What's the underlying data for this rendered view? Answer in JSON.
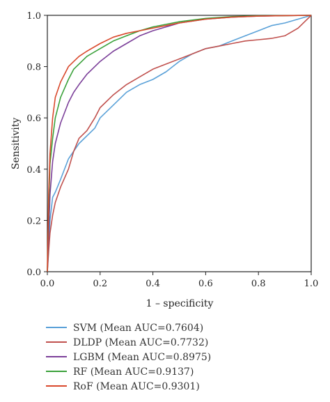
{
  "chart_data": {
    "type": "line",
    "title": "",
    "xlabel": "1 – specificity",
    "ylabel": "Sensitivity",
    "xlim": [
      0.0,
      1.0
    ],
    "ylim": [
      0.0,
      1.0
    ],
    "x_ticks": [
      "0.0",
      "0.2",
      "0.4",
      "0.6",
      "0.8",
      "1.0"
    ],
    "y_ticks": [
      "0.0",
      "0.2",
      "0.4",
      "0.6",
      "0.8",
      "1.0"
    ],
    "grid": false,
    "legend_position": "bottom",
    "series": [
      {
        "name": "SVM (Mean AUC=0.7604)",
        "color": "#5aa1d8",
        "x": [
          0,
          0.005,
          0.01,
          0.02,
          0.03,
          0.05,
          0.08,
          0.1,
          0.12,
          0.15,
          0.18,
          0.2,
          0.25,
          0.3,
          0.35,
          0.4,
          0.45,
          0.5,
          0.55,
          0.6,
          0.65,
          0.7,
          0.75,
          0.8,
          0.85,
          0.9,
          0.95,
          1.0
        ],
        "y": [
          0,
          0.1,
          0.2,
          0.29,
          0.31,
          0.36,
          0.44,
          0.47,
          0.5,
          0.53,
          0.56,
          0.6,
          0.65,
          0.7,
          0.73,
          0.75,
          0.78,
          0.82,
          0.85,
          0.87,
          0.88,
          0.9,
          0.92,
          0.94,
          0.96,
          0.97,
          0.985,
          1.0
        ]
      },
      {
        "name": "DLDP (Mean AUC=0.7732)",
        "color": "#c0504d",
        "x": [
          0,
          0.005,
          0.01,
          0.02,
          0.03,
          0.05,
          0.08,
          0.1,
          0.12,
          0.15,
          0.18,
          0.2,
          0.25,
          0.3,
          0.35,
          0.4,
          0.45,
          0.5,
          0.55,
          0.6,
          0.65,
          0.7,
          0.75,
          0.8,
          0.85,
          0.9,
          0.95,
          0.98,
          1.0
        ],
        "y": [
          0,
          0.08,
          0.15,
          0.22,
          0.27,
          0.33,
          0.4,
          0.47,
          0.52,
          0.55,
          0.6,
          0.64,
          0.69,
          0.73,
          0.76,
          0.79,
          0.81,
          0.83,
          0.85,
          0.87,
          0.88,
          0.89,
          0.9,
          0.905,
          0.91,
          0.92,
          0.95,
          0.98,
          1.0
        ]
      },
      {
        "name": "LGBM (Mean AUC=0.8975)",
        "color": "#7b3f99",
        "x": [
          0,
          0.005,
          0.01,
          0.02,
          0.03,
          0.05,
          0.08,
          0.1,
          0.12,
          0.15,
          0.2,
          0.25,
          0.3,
          0.35,
          0.4,
          0.45,
          0.5,
          0.6,
          0.7,
          0.8,
          0.9,
          1.0
        ],
        "y": [
          0,
          0.15,
          0.3,
          0.43,
          0.5,
          0.58,
          0.66,
          0.7,
          0.73,
          0.77,
          0.82,
          0.86,
          0.89,
          0.92,
          0.94,
          0.955,
          0.97,
          0.985,
          0.993,
          0.997,
          0.999,
          1.0
        ]
      },
      {
        "name": "RF (Mean AUC=0.9137)",
        "color": "#3aa13a",
        "x": [
          0,
          0.005,
          0.01,
          0.02,
          0.03,
          0.05,
          0.08,
          0.1,
          0.12,
          0.15,
          0.2,
          0.25,
          0.3,
          0.35,
          0.4,
          0.45,
          0.5,
          0.6,
          0.7,
          0.8,
          0.9,
          1.0
        ],
        "y": [
          0,
          0.25,
          0.42,
          0.52,
          0.6,
          0.68,
          0.75,
          0.79,
          0.81,
          0.84,
          0.87,
          0.9,
          0.92,
          0.94,
          0.955,
          0.965,
          0.975,
          0.988,
          0.995,
          0.998,
          0.999,
          1.0
        ]
      },
      {
        "name": "RoF (Mean AUC=0.9301)",
        "color": "#d9482b",
        "x": [
          0,
          0.005,
          0.01,
          0.02,
          0.03,
          0.05,
          0.08,
          0.1,
          0.12,
          0.15,
          0.2,
          0.25,
          0.3,
          0.35,
          0.4,
          0.45,
          0.5,
          0.6,
          0.7,
          0.8,
          0.9,
          1.0
        ],
        "y": [
          0,
          0.3,
          0.46,
          0.6,
          0.68,
          0.74,
          0.8,
          0.82,
          0.84,
          0.86,
          0.89,
          0.915,
          0.93,
          0.94,
          0.95,
          0.96,
          0.97,
          0.985,
          0.993,
          0.997,
          0.999,
          1.0
        ]
      }
    ]
  }
}
